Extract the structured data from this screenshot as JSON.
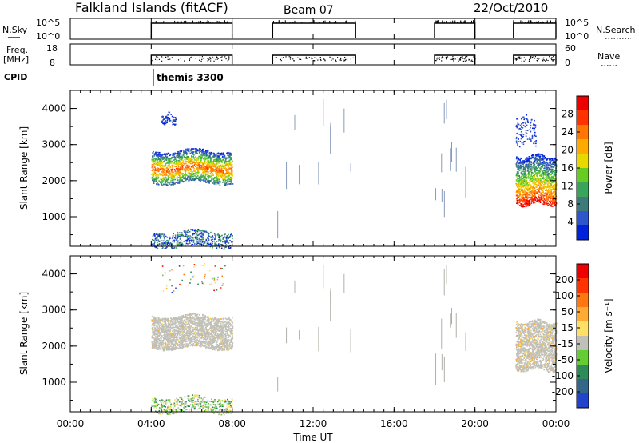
{
  "header": {
    "station": "Falkland Islands (fitACF)",
    "beam": "Beam 07",
    "date": "22/Oct/2010"
  },
  "top_panels": {
    "nsky_label": "N.Sky",
    "nsky_ticks": [
      "10^5",
      "10^0"
    ],
    "nsearch_label": "N.Search",
    "nsearch_ticks": [
      "10^5",
      "10^0"
    ],
    "freq_label": "Freq.",
    "freq_unit": "[MHz]",
    "freq_ticks": [
      "18",
      "8"
    ],
    "nave_label": "Nave",
    "nave_ticks": [
      "60",
      "0"
    ],
    "cpid_label": "CPID",
    "cpid_value": "themis 3300"
  },
  "x_axis": {
    "label": "Time UT",
    "ticks": [
      "00:00",
      "04:00",
      "08:00",
      "12:00",
      "16:00",
      "20:00",
      "00:00"
    ]
  },
  "colorbars": {
    "power": {
      "label": "Power [dB]",
      "ticks": [
        "28",
        "24",
        "20",
        "16",
        "12",
        "8",
        "4"
      ],
      "colors": [
        "#0022dd",
        "#2f55cc",
        "#3f7a7a",
        "#3aa55a",
        "#66cc22",
        "#e8d800",
        "#ffaa00",
        "#ff7700",
        "#ff3300",
        "#ee0000"
      ]
    },
    "velocity": {
      "label": "Velocity [m s⁻¹]",
      "ticks": [
        "200",
        "100",
        "50",
        "15",
        "-15",
        "-50",
        "-100",
        "-200"
      ],
      "colors": [
        "#2244cc",
        "#336688",
        "#2e8b57",
        "#66cc33",
        "#c0c0b8",
        "#ffe066",
        "#ffaa33",
        "#ff7711",
        "#ff3300",
        "#ee0000"
      ]
    }
  },
  "chart_data": [
    {
      "type": "heatmap",
      "title": "Power",
      "ylabel": "Slant Range [km]",
      "xlabel": "",
      "yticks": [
        "4000",
        "3000",
        "2000",
        "1000"
      ],
      "ylim": [
        180,
        4500
      ],
      "xlim_hours": [
        0,
        24
      ],
      "data_periods_hours": [
        [
          4,
          8
        ],
        [
          10,
          14.1
        ],
        [
          18,
          20
        ],
        [
          21.9,
          24
        ]
      ],
      "echo_regions": [
        {
          "t_start": 4.0,
          "t_end": 8.0,
          "range_low": 1950,
          "range_high": 2850,
          "power_db": "8-24"
        },
        {
          "t_start": 4.0,
          "t_end": 8.0,
          "range_low": 180,
          "range_high": 600,
          "power_db": "4-12"
        },
        {
          "t_start": 4.5,
          "t_end": 5.2,
          "range_low": 3600,
          "range_high": 3850,
          "power_db": "4"
        },
        {
          "t_start": 22.0,
          "t_end": 24.0,
          "range_low": 1350,
          "range_high": 2700,
          "power_db": "4-28"
        },
        {
          "t_start": 22.0,
          "t_end": 23.0,
          "range_low": 3000,
          "range_high": 3800,
          "power_db": "4"
        }
      ]
    },
    {
      "type": "heatmap",
      "title": "Velocity",
      "ylabel": "Slant Range [km]",
      "xlabel": "Time UT",
      "yticks": [
        "4000",
        "3000",
        "2000",
        "1000"
      ],
      "ylim": [
        180,
        4500
      ],
      "xlim_hours": [
        0,
        24
      ],
      "echo_regions": [
        {
          "t_start": 4.0,
          "t_end": 8.0,
          "range_low": 1950,
          "range_high": 2850,
          "velocity": "-15 to 15"
        },
        {
          "t_start": 4.0,
          "t_end": 8.0,
          "range_low": 180,
          "range_high": 600,
          "velocity": "-50 to 50"
        },
        {
          "t_start": 22.0,
          "t_end": 24.0,
          "range_low": 1350,
          "range_high": 2700,
          "velocity": "-15 to 15"
        }
      ]
    }
  ]
}
